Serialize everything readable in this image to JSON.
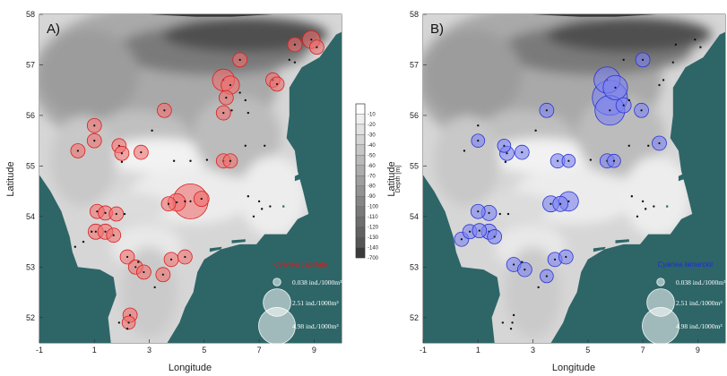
{
  "panels": [
    {
      "letter": "A)",
      "species": "Cyanea capillata",
      "species_color": "#d41c1c",
      "fill_color": "#f07070",
      "stroke_color": "#d82020",
      "samples": [
        {
          "lon": 0.4,
          "lat": 55.3,
          "v": 0.5
        },
        {
          "lon": 1.0,
          "lat": 55.8,
          "v": 0.5
        },
        {
          "lon": 1.0,
          "lat": 55.5,
          "v": 0.5
        },
        {
          "lon": 1.9,
          "lat": 55.4,
          "v": 0.5
        },
        {
          "lon": 2.0,
          "lat": 55.25,
          "v": 0.5
        },
        {
          "lon": 2.7,
          "lat": 55.27,
          "v": 0.5
        },
        {
          "lon": 1.1,
          "lat": 54.1,
          "v": 0.5
        },
        {
          "lon": 1.4,
          "lat": 54.07,
          "v": 0.5
        },
        {
          "lon": 1.8,
          "lat": 54.05,
          "v": 0.5
        },
        {
          "lon": 1.05,
          "lat": 53.7,
          "v": 0.6
        },
        {
          "lon": 1.4,
          "lat": 53.7,
          "v": 0.6
        },
        {
          "lon": 1.7,
          "lat": 53.63,
          "v": 0.5
        },
        {
          "lon": 2.2,
          "lat": 53.2,
          "v": 0.5
        },
        {
          "lon": 2.5,
          "lat": 53.0,
          "v": 0.5
        },
        {
          "lon": 2.8,
          "lat": 52.9,
          "v": 0.5
        },
        {
          "lon": 2.3,
          "lat": 52.05,
          "v": 0.5
        },
        {
          "lon": 2.25,
          "lat": 51.9,
          "v": 0.4
        },
        {
          "lon": 3.5,
          "lat": 52.85,
          "v": 0.5
        },
        {
          "lon": 3.8,
          "lat": 53.15,
          "v": 0.5
        },
        {
          "lon": 4.3,
          "lat": 53.2,
          "v": 0.5
        },
        {
          "lon": 3.55,
          "lat": 56.1,
          "v": 0.5
        },
        {
          "lon": 3.7,
          "lat": 54.25,
          "v": 0.5
        },
        {
          "lon": 4.0,
          "lat": 54.28,
          "v": 0.9
        },
        {
          "lon": 4.5,
          "lat": 54.3,
          "v": 4.98
        },
        {
          "lon": 4.9,
          "lat": 54.35,
          "v": 0.6
        },
        {
          "lon": 5.7,
          "lat": 56.7,
          "v": 1.6
        },
        {
          "lon": 5.95,
          "lat": 56.6,
          "v": 1.0
        },
        {
          "lon": 5.8,
          "lat": 56.35,
          "v": 0.5
        },
        {
          "lon": 5.7,
          "lat": 56.05,
          "v": 0.5
        },
        {
          "lon": 5.7,
          "lat": 55.1,
          "v": 0.5
        },
        {
          "lon": 5.95,
          "lat": 55.1,
          "v": 0.5
        },
        {
          "lon": 6.3,
          "lat": 57.1,
          "v": 0.5
        },
        {
          "lon": 7.5,
          "lat": 56.7,
          "v": 0.5
        },
        {
          "lon": 7.65,
          "lat": 56.62,
          "v": 0.5
        },
        {
          "lon": 8.3,
          "lat": 57.4,
          "v": 0.5
        },
        {
          "lon": 8.9,
          "lat": 57.5,
          "v": 0.9
        },
        {
          "lon": 9.1,
          "lat": 57.35,
          "v": 0.5
        }
      ],
      "zeros": [
        {
          "lon": 2.0,
          "lat": 55.08
        },
        {
          "lon": 3.1,
          "lat": 55.7
        },
        {
          "lon": 3.9,
          "lat": 55.1
        },
        {
          "lon": 4.5,
          "lat": 55.1
        },
        {
          "lon": 5.1,
          "lat": 55.12
        },
        {
          "lon": 6.3,
          "lat": 56.45
        },
        {
          "lon": 6.5,
          "lat": 56.3
        },
        {
          "lon": 6.0,
          "lat": 56.1
        },
        {
          "lon": 6.6,
          "lat": 56.05
        },
        {
          "lon": 6.5,
          "lat": 55.4
        },
        {
          "lon": 7.2,
          "lat": 55.4
        },
        {
          "lon": 6.6,
          "lat": 54.4
        },
        {
          "lon": 7.0,
          "lat": 54.3
        },
        {
          "lon": 7.1,
          "lat": 54.15
        },
        {
          "lon": 6.8,
          "lat": 54.0
        },
        {
          "lon": 7.4,
          "lat": 54.2
        },
        {
          "lon": 2.1,
          "lat": 54.05
        },
        {
          "lon": 0.9,
          "lat": 53.7
        },
        {
          "lon": 0.6,
          "lat": 53.5
        },
        {
          "lon": 0.3,
          "lat": 53.4
        },
        {
          "lon": 2.6,
          "lat": 53.1
        },
        {
          "lon": 3.2,
          "lat": 52.6
        },
        {
          "lon": 1.9,
          "lat": 51.9
        },
        {
          "lon": 2.2,
          "lat": 51.78
        },
        {
          "lon": 8.1,
          "lat": 57.1
        },
        {
          "lon": 8.3,
          "lat": 57.05
        },
        {
          "lon": 4.3,
          "lat": 54.3
        }
      ]
    },
    {
      "letter": "B)",
      "species": "Cyanea lamarckii",
      "species_color": "#1e2bd8",
      "fill_color": "#7c82ee",
      "stroke_color": "#2a32d6",
      "samples": [
        {
          "lon": 0.4,
          "lat": 53.55,
          "v": 0.5
        },
        {
          "lon": 0.7,
          "lat": 53.7,
          "v": 0.5
        },
        {
          "lon": 1.05,
          "lat": 53.72,
          "v": 0.5
        },
        {
          "lon": 1.4,
          "lat": 53.7,
          "v": 0.6
        },
        {
          "lon": 1.6,
          "lat": 53.6,
          "v": 0.5
        },
        {
          "lon": 1.0,
          "lat": 54.1,
          "v": 0.5
        },
        {
          "lon": 1.4,
          "lat": 54.07,
          "v": 0.6
        },
        {
          "lon": 1.0,
          "lat": 55.5,
          "v": 0.4
        },
        {
          "lon": 1.95,
          "lat": 55.4,
          "v": 0.4
        },
        {
          "lon": 2.05,
          "lat": 55.25,
          "v": 0.5
        },
        {
          "lon": 2.6,
          "lat": 55.27,
          "v": 0.5
        },
        {
          "lon": 3.5,
          "lat": 56.1,
          "v": 0.5
        },
        {
          "lon": 3.9,
          "lat": 55.1,
          "v": 0.5
        },
        {
          "lon": 4.3,
          "lat": 55.1,
          "v": 0.4
        },
        {
          "lon": 5.7,
          "lat": 55.1,
          "v": 0.5
        },
        {
          "lon": 5.95,
          "lat": 55.1,
          "v": 0.4
        },
        {
          "lon": 3.65,
          "lat": 54.25,
          "v": 0.7
        },
        {
          "lon": 4.0,
          "lat": 54.25,
          "v": 0.6
        },
        {
          "lon": 4.3,
          "lat": 54.3,
          "v": 1.2
        },
        {
          "lon": 2.3,
          "lat": 53.05,
          "v": 0.5
        },
        {
          "lon": 2.7,
          "lat": 52.95,
          "v": 0.5
        },
        {
          "lon": 3.5,
          "lat": 52.82,
          "v": 0.4
        },
        {
          "lon": 3.8,
          "lat": 53.15,
          "v": 0.5
        },
        {
          "lon": 4.2,
          "lat": 53.2,
          "v": 0.5
        },
        {
          "lon": 5.7,
          "lat": 56.7,
          "v": 2.5
        },
        {
          "lon": 6.0,
          "lat": 56.55,
          "v": 2.1
        },
        {
          "lon": 5.8,
          "lat": 56.35,
          "v": 4.98
        },
        {
          "lon": 5.8,
          "lat": 56.1,
          "v": 3.4
        },
        {
          "lon": 6.3,
          "lat": 56.2,
          "v": 0.6
        },
        {
          "lon": 6.95,
          "lat": 56.1,
          "v": 0.5
        },
        {
          "lon": 7.0,
          "lat": 57.1,
          "v": 0.5
        },
        {
          "lon": 7.6,
          "lat": 55.45,
          "v": 0.5
        }
      ],
      "zeros": [
        {
          "lon": 1.0,
          "lat": 55.8
        },
        {
          "lon": 0.5,
          "lat": 55.3
        },
        {
          "lon": 2.0,
          "lat": 55.08
        },
        {
          "lon": 3.1,
          "lat": 55.7
        },
        {
          "lon": 5.1,
          "lat": 55.12
        },
        {
          "lon": 6.5,
          "lat": 56.3
        },
        {
          "lon": 6.5,
          "lat": 55.4
        },
        {
          "lon": 7.2,
          "lat": 55.4
        },
        {
          "lon": 6.6,
          "lat": 54.4
        },
        {
          "lon": 7.0,
          "lat": 54.3
        },
        {
          "lon": 7.1,
          "lat": 54.15
        },
        {
          "lon": 6.8,
          "lat": 54.0
        },
        {
          "lon": 7.4,
          "lat": 54.2
        },
        {
          "lon": 1.8,
          "lat": 54.05
        },
        {
          "lon": 2.1,
          "lat": 54.05
        },
        {
          "lon": 2.6,
          "lat": 53.1
        },
        {
          "lon": 3.2,
          "lat": 52.6
        },
        {
          "lon": 1.9,
          "lat": 51.9
        },
        {
          "lon": 2.2,
          "lat": 51.78
        },
        {
          "lon": 7.6,
          "lat": 56.6
        },
        {
          "lon": 7.75,
          "lat": 56.7
        },
        {
          "lon": 8.9,
          "lat": 57.5
        },
        {
          "lon": 9.1,
          "lat": 57.35
        },
        {
          "lon": 8.2,
          "lat": 57.4
        },
        {
          "lon": 6.3,
          "lat": 57.1
        },
        {
          "lon": 8.1,
          "lat": 57.05
        },
        {
          "lon": 2.3,
          "lat": 52.05
        },
        {
          "lon": 2.25,
          "lat": 51.9
        }
      ]
    }
  ],
  "axes": {
    "xlabel": "Longitude",
    "ylabel": "Latitude",
    "lon_range": [
      -1,
      10
    ],
    "lat_range": [
      51.5,
      58
    ],
    "lon_ticks": [
      "-1",
      "1",
      "3",
      "5",
      "7",
      "9"
    ],
    "lon_tick_values": [
      -1,
      1,
      3,
      5,
      7,
      9
    ],
    "lat_ticks": [
      "52",
      "53",
      "54",
      "55",
      "56",
      "57",
      "58"
    ],
    "lat_tick_values": [
      52,
      53,
      54,
      55,
      56,
      57,
      58
    ]
  },
  "legend": {
    "entries": [
      {
        "label": "0.038 ind./1000m³",
        "value": 0.038
      },
      {
        "label": "2.51 ind./1000m³",
        "value": 2.51
      },
      {
        "label": "4.98 ind./1000m³",
        "value": 4.98
      }
    ]
  },
  "colorbar": {
    "title": "Depth [m]",
    "labels": [
      "-10",
      "-20",
      "-30",
      "-40",
      "-50",
      "-60",
      "-70",
      "-80",
      "-90",
      "-100",
      "-110",
      "-120",
      "-130",
      "-140",
      "-700"
    ],
    "colors": [
      "#ffffff",
      "#f0f0f0",
      "#e2e2e2",
      "#d4d4d4",
      "#c6c6c6",
      "#b9b9b9",
      "#acacac",
      "#9f9f9f",
      "#939393",
      "#868686",
      "#7a7a7a",
      "#6e6e6e",
      "#626262",
      "#555555",
      "#3a3a3a"
    ]
  },
  "colors": {
    "land": "#2e6668",
    "land_dark": "#3b3b3b",
    "sea": "#d6d6d6"
  }
}
